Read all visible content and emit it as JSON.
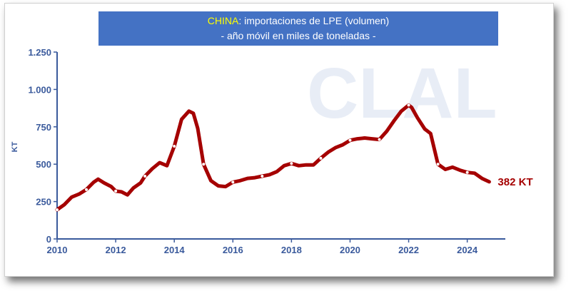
{
  "title": {
    "highlight": "CHINA",
    "line1_rest": ": importaciones de LPE (volumen)",
    "line2": "- año móvil en miles de toneladas -"
  },
  "watermark": "CLAL",
  "colors": {
    "line": "#a50000",
    "axis": "#3a5a9c",
    "title_bg": "#4472c4",
    "highlight": "#ffff00"
  },
  "chart_data": {
    "type": "line",
    "ylabel": "KT",
    "xlim": [
      2010,
      2025.3
    ],
    "ylim": [
      0,
      1250
    ],
    "xticks": [
      {
        "value": 2010,
        "label": "2010"
      },
      {
        "value": 2012,
        "label": "2012"
      },
      {
        "value": 2014,
        "label": "2014"
      },
      {
        "value": 2016,
        "label": "2016"
      },
      {
        "value": 2018,
        "label": "2018"
      },
      {
        "value": 2020,
        "label": "2020"
      },
      {
        "value": 2022,
        "label": "2022"
      },
      {
        "value": 2024,
        "label": "2024"
      }
    ],
    "yticks": [
      {
        "value": 0,
        "label": "0"
      },
      {
        "value": 250,
        "label": "250"
      },
      {
        "value": 500,
        "label": "500"
      },
      {
        "value": 750,
        "label": "750"
      },
      {
        "value": 1000,
        "label": "1.000"
      },
      {
        "value": 1250,
        "label": "1.250"
      }
    ],
    "grid": false,
    "end_label": "382 KT",
    "series": [
      {
        "x": [
          2010.0,
          2010.25,
          2010.5,
          2010.75,
          2011.0,
          2011.25,
          2011.4,
          2011.6,
          2011.85,
          2012.0,
          2012.2,
          2012.4,
          2012.6,
          2012.85,
          2013.0,
          2013.25,
          2013.5,
          2013.75,
          2014.0,
          2014.25,
          2014.5,
          2014.65,
          2014.8,
          2015.0,
          2015.25,
          2015.5,
          2015.75,
          2016.0,
          2016.25,
          2016.5,
          2016.75,
          2017.0,
          2017.25,
          2017.5,
          2017.75,
          2018.0,
          2018.25,
          2018.5,
          2018.75,
          2019.0,
          2019.25,
          2019.5,
          2019.75,
          2020.0,
          2020.25,
          2020.5,
          2020.75,
          2021.0,
          2021.25,
          2021.5,
          2021.75,
          2022.0,
          2022.1,
          2022.3,
          2022.55,
          2022.75,
          2023.0,
          2023.25,
          2023.5,
          2023.75,
          2024.0,
          2024.25,
          2024.5,
          2024.75
        ],
        "values": [
          195,
          230,
          280,
          300,
          330,
          380,
          400,
          375,
          350,
          320,
          315,
          295,
          340,
          375,
          420,
          470,
          510,
          490,
          620,
          800,
          855,
          840,
          740,
          500,
          390,
          355,
          350,
          380,
          390,
          405,
          410,
          420,
          430,
          450,
          490,
          505,
          490,
          495,
          495,
          540,
          580,
          610,
          630,
          660,
          670,
          675,
          670,
          665,
          720,
          790,
          855,
          895,
          880,
          810,
          735,
          705,
          500,
          465,
          480,
          460,
          445,
          440,
          405,
          382
        ]
      }
    ]
  }
}
